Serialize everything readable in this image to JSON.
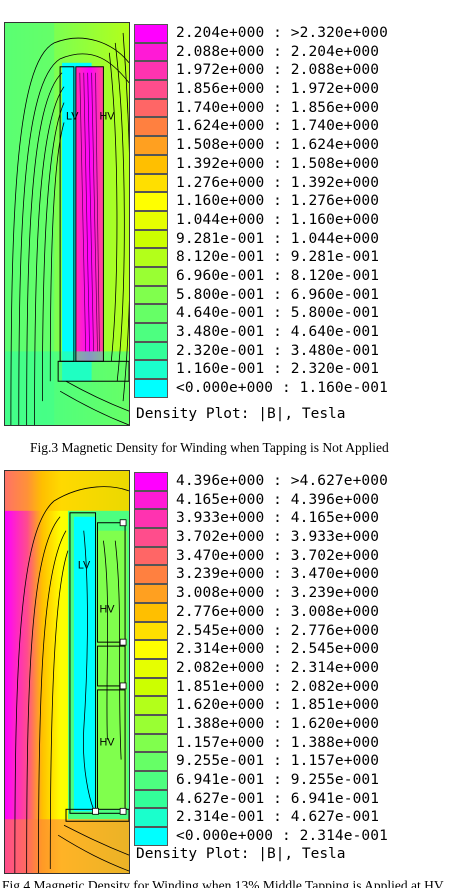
{
  "figure1": {
    "legend": [
      {
        "label": "2.204e+000 : >2.320e+000",
        "color": "#ff00ff"
      },
      {
        "label": "2.088e+000 : 2.204e+000",
        "color": "#ff1ad6"
      },
      {
        "label": "1.972e+000 : 2.088e+000",
        "color": "#ff33b0"
      },
      {
        "label": "1.856e+000 : 1.972e+000",
        "color": "#ff4d8c"
      },
      {
        "label": "1.740e+000 : 1.856e+000",
        "color": "#ff6666"
      },
      {
        "label": "1.624e+000 : 1.740e+000",
        "color": "#ff8040"
      },
      {
        "label": "1.508e+000 : 1.624e+000",
        "color": "#ffa020"
      },
      {
        "label": "1.392e+000 : 1.508e+000",
        "color": "#ffbf00"
      },
      {
        "label": "1.276e+000 : 1.392e+000",
        "color": "#ffdf00"
      },
      {
        "label": "1.160e+000 : 1.276e+000",
        "color": "#ffff00"
      },
      {
        "label": "1.044e+000 : 1.160e+000",
        "color": "#e6ff00"
      },
      {
        "label": "9.281e-001 : 1.044e+000",
        "color": "#ccff00"
      },
      {
        "label": "8.120e-001 : 9.281e-001",
        "color": "#b3ff1a"
      },
      {
        "label": "6.960e-001 : 8.120e-001",
        "color": "#99ff33"
      },
      {
        "label": "5.800e-001 : 6.960e-001",
        "color": "#80ff4d"
      },
      {
        "label": "4.640e-001 : 5.800e-001",
        "color": "#66ff66"
      },
      {
        "label": "3.480e-001 : 4.640e-001",
        "color": "#4dff80"
      },
      {
        "label": "2.320e-001 : 3.480e-001",
        "color": "#33ff99"
      },
      {
        "label": "1.160e-001 : 2.320e-001",
        "color": "#1affcc"
      },
      {
        "label": "<0.000e+000 : 1.160e-001",
        "color": "#00ffff"
      }
    ],
    "density_label": "Density Plot: |B|, Tesla",
    "caption": "Fig.3 Magnetic Density for  Winding when Tapping is Not Applied",
    "plot_labels": {
      "lv": "LV",
      "hv": "HV"
    }
  },
  "figure2": {
    "legend": [
      {
        "label": "4.396e+000 : >4.627e+000",
        "color": "#ff00ff"
      },
      {
        "label": "4.165e+000 : 4.396e+000",
        "color": "#ff1ad6"
      },
      {
        "label": "3.933e+000 : 4.165e+000",
        "color": "#ff33b0"
      },
      {
        "label": "3.702e+000 : 3.933e+000",
        "color": "#ff4d8c"
      },
      {
        "label": "3.470e+000 : 3.702e+000",
        "color": "#ff6666"
      },
      {
        "label": "3.239e+000 : 3.470e+000",
        "color": "#ff8040"
      },
      {
        "label": "3.008e+000 : 3.239e+000",
        "color": "#ffa020"
      },
      {
        "label": "2.776e+000 : 3.008e+000",
        "color": "#ffbf00"
      },
      {
        "label": "2.545e+000 : 2.776e+000",
        "color": "#ffdf00"
      },
      {
        "label": "2.314e+000 : 2.545e+000",
        "color": "#ffff00"
      },
      {
        "label": "2.082e+000 : 2.314e+000",
        "color": "#e6ff00"
      },
      {
        "label": "1.851e+000 : 2.082e+000",
        "color": "#ccff00"
      },
      {
        "label": "1.620e+000 : 1.851e+000",
        "color": "#b3ff1a"
      },
      {
        "label": "1.388e+000 : 1.620e+000",
        "color": "#99ff33"
      },
      {
        "label": "1.157e+000 : 1.388e+000",
        "color": "#80ff4d"
      },
      {
        "label": "9.255e-001 : 1.157e+000",
        "color": "#66ff66"
      },
      {
        "label": "6.941e-001 : 9.255e-001",
        "color": "#4dff80"
      },
      {
        "label": "4.627e-001 : 6.941e-001",
        "color": "#33ff99"
      },
      {
        "label": "2.314e-001 : 4.627e-001",
        "color": "#1affcc"
      },
      {
        "label": "<0.000e+000 : 2.314e-001",
        "color": "#00ffff"
      }
    ],
    "density_label": "Density Plot: |B|, Tesla",
    "caption": "Fig.4 Magnetic Density for Winding when 13% Middle Tapping is Applied at HV",
    "plot_labels": {
      "lv": "LV",
      "hv_top": "HV",
      "hv_bottom": "HV"
    }
  }
}
